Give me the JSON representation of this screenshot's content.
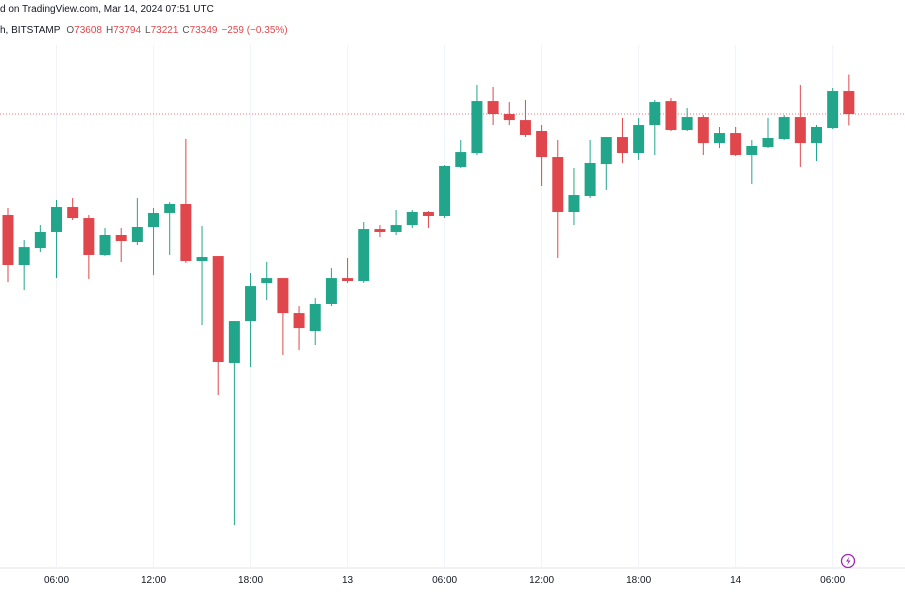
{
  "header": {
    "source": "d on TradingView.com, Mar 14, 2024 07:51 UTC",
    "symbol": "h, BITSTAMP",
    "open_label": "O",
    "high_label": "H",
    "low_label": "L",
    "close_label": "C",
    "change": "−259 (−0.35%)"
  },
  "chart_data": {
    "type": "candlestick",
    "categories": [
      null,
      null,
      null,
      "06:00",
      null,
      null,
      null,
      null,
      null,
      "12:00",
      null,
      null,
      null,
      null,
      null,
      "18:00",
      null,
      null,
      null,
      null,
      null,
      "13",
      null,
      null,
      null,
      null,
      null,
      "06:00",
      null,
      null,
      null,
      null,
      null,
      "12:00",
      null,
      null,
      null,
      null,
      null,
      "18:00",
      null,
      null,
      null,
      null,
      null,
      "14",
      null,
      null,
      null,
      null,
      null,
      "06:00",
      null
    ],
    "open": [
      72212,
      71649,
      71840,
      72021,
      72302,
      72178,
      71762,
      71987,
      71908,
      72077,
      72235,
      72336,
      71694,
      71750,
      70546,
      71018,
      71446,
      71502,
      71108,
      70906,
      71210,
      71502,
      71469,
      72054,
      72021,
      72099,
      72246,
      72201,
      72753,
      72910,
      73495,
      73349,
      73281,
      73158,
      72865,
      72246,
      72426,
      72786,
      73090,
      72910,
      73225,
      73495,
      73169,
      73315,
      73022,
      73135,
      72888,
      72977,
      73068,
      73315,
      73022,
      73191,
      73608
    ],
    "high": [
      72291,
      71930,
      72099,
      72381,
      72403,
      72212,
      72066,
      72066,
      72403,
      72291,
      72358,
      73068,
      72088,
      71750,
      71018,
      71559,
      71683,
      71502,
      71187,
      71277,
      71615,
      71728,
      72133,
      72099,
      72268,
      72268,
      72257,
      72775,
      73056,
      73676,
      73653,
      73484,
      73507,
      73225,
      73056,
      72741,
      73056,
      73090,
      73304,
      73304,
      73507,
      73529,
      73417,
      73338,
      73203,
      73203,
      73056,
      73304,
      73338,
      73676,
      73225,
      73642,
      73794
    ],
    "low": [
      71457,
      71367,
      71795,
      71502,
      72156,
      71491,
      71750,
      71683,
      71874,
      71536,
      71762,
      71672,
      70973,
      70185,
      68721,
      70501,
      71255,
      70636,
      70692,
      70748,
      71187,
      71446,
      71446,
      71964,
      71987,
      72066,
      72066,
      72178,
      72741,
      72888,
      73225,
      73225,
      73090,
      72539,
      71728,
      72099,
      72403,
      72494,
      72798,
      72831,
      72888,
      73158,
      73158,
      72888,
      72966,
      72876,
      72561,
      72966,
      73056,
      72753,
      72820,
      73180,
      73221
    ],
    "close": [
      71649,
      71851,
      72021,
      72302,
      72178,
      71762,
      71987,
      71919,
      72077,
      72235,
      72336,
      71694,
      71739,
      70557,
      71018,
      71412,
      71502,
      71108,
      70939,
      71210,
      71502,
      71469,
      72054,
      72021,
      72099,
      72246,
      72201,
      72764,
      72921,
      73495,
      73349,
      73281,
      73113,
      72865,
      72246,
      72437,
      72798,
      73090,
      72910,
      73225,
      73484,
      73169,
      73315,
      73022,
      73135,
      72888,
      72989,
      73079,
      73315,
      73022,
      73203,
      73608,
      73349
    ],
    "up_color": "#22a68b",
    "down_color": "#e0474c",
    "ylim": [
      68215,
      74633
    ],
    "grid": true
  }
}
